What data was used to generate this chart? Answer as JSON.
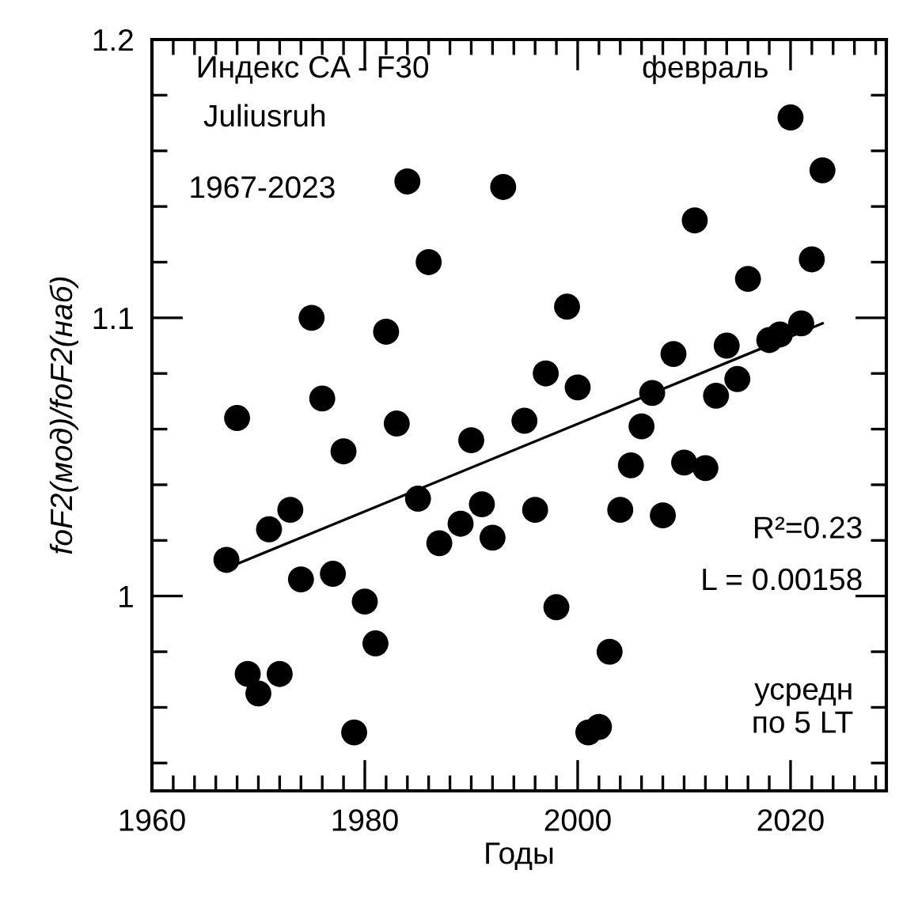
{
  "chart_data": {
    "type": "scatter",
    "xlabel": "Годы",
    "ylabel": "foF2(мод)/foF2(наб)",
    "annotations": [
      "Индекс CA - F30",
      "Juliusruh",
      "1967-2023",
      "февраль",
      "R²=0.23",
      "L = 0.00158",
      "усредн\nпо 5 LT"
    ],
    "xlim": [
      1960,
      2029
    ],
    "ylim": [
      0.93,
      1.2
    ],
    "xticks": [
      1960,
      {
        "value": 1962,
        "label": null
      },
      {
        "value": 1964,
        "label": null
      },
      {
        "value": 1966,
        "label": null
      },
      {
        "value": 1968,
        "label": null
      },
      {
        "value": 1970,
        "label": null
      },
      {
        "value": 1972,
        "label": null
      },
      {
        "value": 1974,
        "label": null
      },
      {
        "value": 1976,
        "label": null
      },
      {
        "value": 1978,
        "label": null
      },
      1980,
      {
        "value": 1982,
        "label": null
      },
      {
        "value": 1984,
        "label": null
      },
      {
        "value": 1986,
        "label": null
      },
      {
        "value": 1988,
        "label": null
      },
      {
        "value": 1990,
        "label": null
      },
      {
        "value": 1992,
        "label": null
      },
      {
        "value": 1994,
        "label": null
      },
      {
        "value": 1996,
        "label": null
      },
      {
        "value": 1998,
        "label": null
      },
      2000,
      {
        "value": 2002,
        "label": null
      },
      {
        "value": 2004,
        "label": null
      },
      {
        "value": 2006,
        "label": null
      },
      {
        "value": 2008,
        "label": null
      },
      {
        "value": 2010,
        "label": null
      },
      {
        "value": 2012,
        "label": null
      },
      {
        "value": 2014,
        "label": null
      },
      {
        "value": 2016,
        "label": null
      },
      {
        "value": 2018,
        "label": null
      },
      2020,
      {
        "value": 2022,
        "label": null
      },
      {
        "value": 2024,
        "label": null
      },
      {
        "value": 2026,
        "label": null
      },
      {
        "value": 2028,
        "label": null
      }
    ],
    "yticks": [
      {
        "value": 0.94,
        "label": null
      },
      {
        "value": 0.96,
        "label": null
      },
      {
        "value": 0.98,
        "label": null
      },
      1,
      {
        "value": 1.02,
        "label": null
      },
      {
        "value": 1.04,
        "label": null
      },
      {
        "value": 1.06,
        "label": null
      },
      {
        "value": 1.08,
        "label": null
      },
      1.1,
      {
        "value": 1.12,
        "label": null
      },
      {
        "value": 1.14,
        "label": null
      },
      {
        "value": 1.16,
        "label": null
      },
      {
        "value": 1.18,
        "label": null
      },
      1.2
    ],
    "grid": false,
    "marker": "circle",
    "series": [
      {
        "color": "#000000",
        "x": [
          1967,
          1968,
          1969,
          1970,
          1971,
          1972,
          1973,
          1974,
          1975,
          1976,
          1977,
          1978,
          1979,
          1980,
          1981,
          1982,
          1983,
          1984,
          1985,
          1986,
          1987,
          1989,
          1990,
          1991,
          1992,
          1993,
          1995,
          1996,
          1997,
          1998,
          1999,
          2000,
          2001,
          2002,
          2003,
          2004,
          2005,
          2006,
          2007,
          2008,
          2009,
          2010,
          2011,
          2012,
          2013,
          2014,
          2015,
          2016,
          2018,
          2019,
          2020,
          2021,
          2022,
          2023
        ],
        "values": [
          1.013,
          1.064,
          0.972,
          0.965,
          1.024,
          0.972,
          1.031,
          1.006,
          1.1,
          1.071,
          1.008,
          1.052,
          0.951,
          0.998,
          0.983,
          1.095,
          1.062,
          1.149,
          1.035,
          1.12,
          1.019,
          1.026,
          1.056,
          1.033,
          1.021,
          1.147,
          1.063,
          1.031,
          1.08,
          0.996,
          1.104,
          1.075,
          0.951,
          0.953,
          0.98,
          1.031,
          1.047,
          1.061,
          1.073,
          1.029,
          1.087,
          1.048,
          1.135,
          1.046,
          1.072,
          1.09,
          1.078,
          1.114,
          1.092,
          1.094,
          1.172,
          1.098,
          1.121,
          1.153
        ]
      },
      {
        "type": "line",
        "color": "#000000",
        "marker": "none",
        "line_style": "solid",
        "x": [
          1967,
          2023
        ],
        "values": [
          1.01,
          1.098
        ]
      }
    ]
  }
}
